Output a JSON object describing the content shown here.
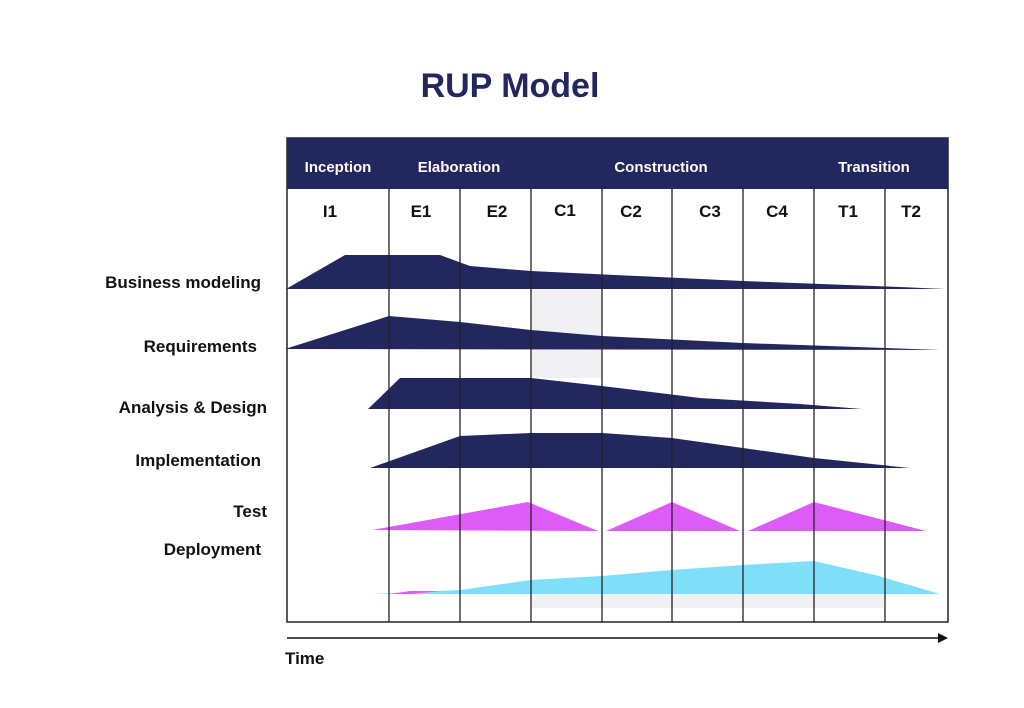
{
  "title": "RUP Model",
  "colors": {
    "title": "#22285e",
    "header_bg": "#22285e",
    "header_text": "#ffffff",
    "discipline_fill": "#22285e",
    "test_fill": "#dd5bf7",
    "deployment_fill": "#7fdff9",
    "grid_line": "#222222",
    "label_text": "#111111",
    "shading": "#f1f1f3"
  },
  "phases": [
    "Inception",
    "Elaboration",
    "Construction",
    "Transition"
  ],
  "iterations": [
    "I1",
    "E1",
    "E2",
    "C1",
    "C2",
    "C3",
    "C4",
    "T1",
    "T2"
  ],
  "disciplines": [
    "Business modeling",
    "Requirements",
    "Analysis & Design",
    "Implementation",
    "Test",
    "Deployment"
  ],
  "time_label": "Time"
}
